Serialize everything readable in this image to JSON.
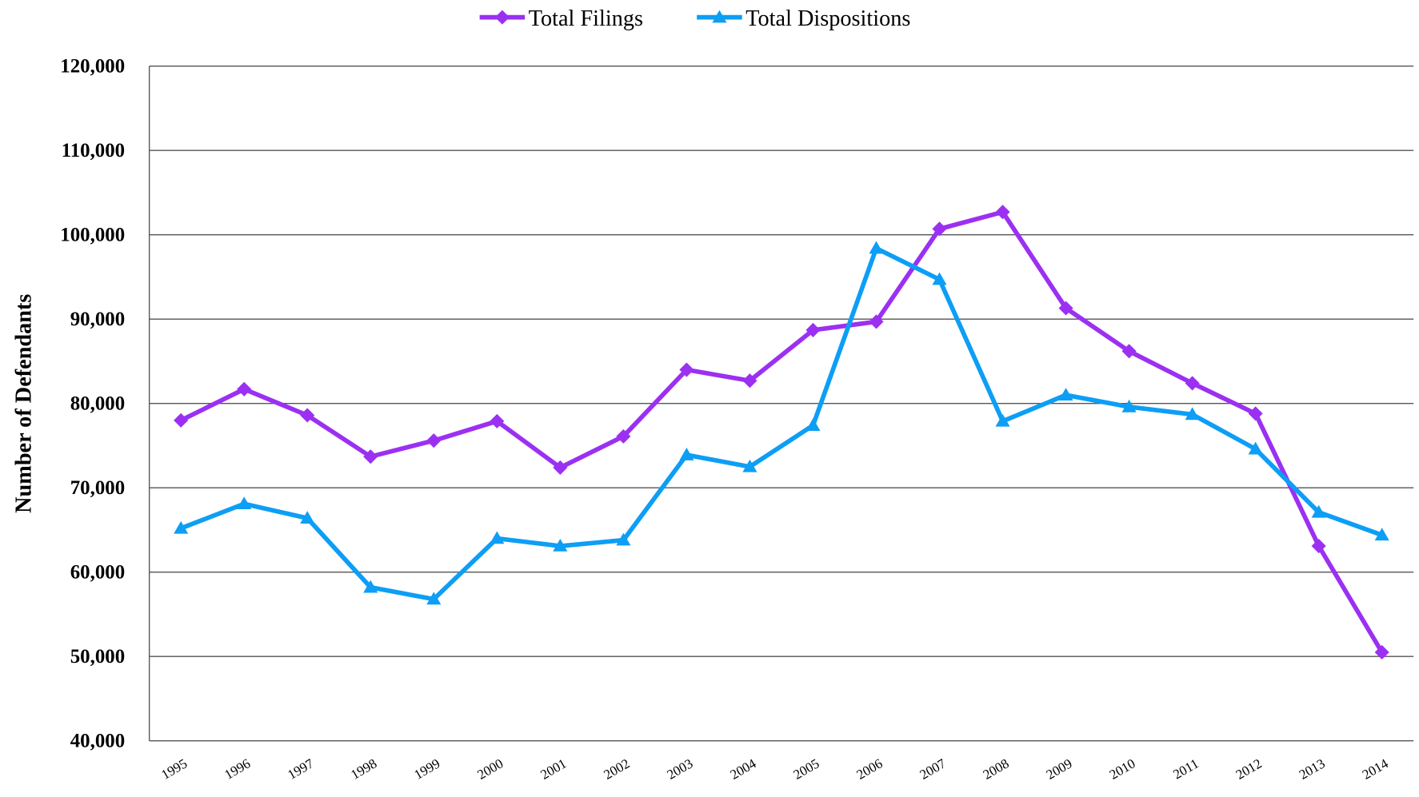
{
  "chart_data": {
    "type": "line",
    "y_label": "Number of Defendants",
    "categories": [
      "1995",
      "1996",
      "1997",
      "1998",
      "1999",
      "2000",
      "2001",
      "2002",
      "2003",
      "2004",
      "2005",
      "2006",
      "2007",
      "2008",
      "2009",
      "2010",
      "2011",
      "2012",
      "2013",
      "2014"
    ],
    "series": [
      {
        "name": "Total Filings",
        "color": "#9b30f2",
        "marker": "diamond",
        "values": [
          78000,
          81700,
          78600,
          73700,
          75600,
          77900,
          72400,
          76100,
          84000,
          82700,
          88700,
          89700,
          100700,
          102700,
          91300,
          86200,
          82400,
          78800,
          63100,
          50500
        ]
      },
      {
        "name": "Total Dispositions",
        "color": "#0d9ef5",
        "marker": "triangle",
        "values": [
          65200,
          68100,
          66400,
          58200,
          56800,
          64000,
          63100,
          63800,
          73900,
          72500,
          77400,
          98400,
          94700,
          77900,
          81000,
          79600,
          78700,
          74600,
          67100,
          64400
        ]
      }
    ],
    "ylim": [
      40000,
      120000
    ],
    "yticks": [
      {
        "value": 40000,
        "label": "40,000"
      },
      {
        "value": 50000,
        "label": "50,000"
      },
      {
        "value": 60000,
        "label": "60,000"
      },
      {
        "value": 70000,
        "label": "70,000"
      },
      {
        "value": 80000,
        "label": "80,000"
      },
      {
        "value": 90000,
        "label": "90,000"
      },
      {
        "value": 100000,
        "label": "100,000"
      },
      {
        "value": 110000,
        "label": "110,000"
      },
      {
        "value": 120000,
        "label": "120,000"
      }
    ],
    "grid": true,
    "legend": "top"
  }
}
